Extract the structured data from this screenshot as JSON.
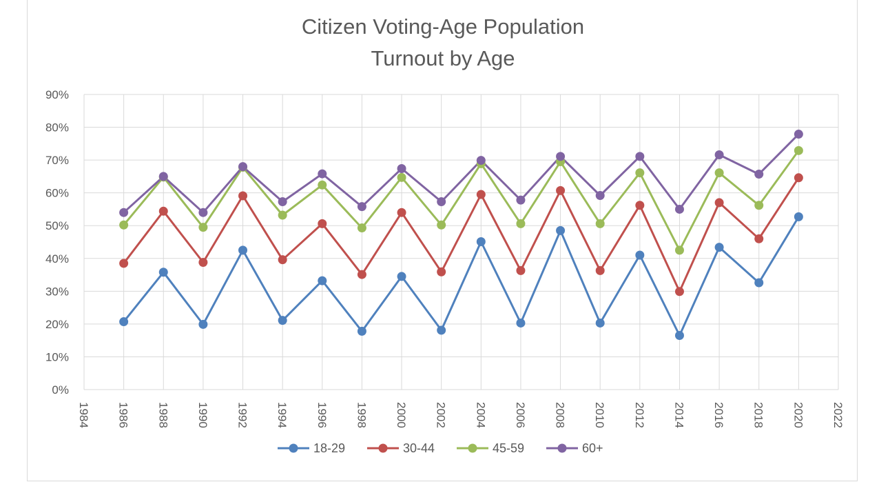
{
  "chart_data": {
    "type": "line",
    "title_lines": [
      "Citizen Voting-Age Population",
      "Turnout by Age"
    ],
    "xlabel": "",
    "ylabel": "",
    "x": [
      1986,
      1988,
      1990,
      1992,
      1994,
      1996,
      1998,
      2000,
      2002,
      2004,
      2006,
      2008,
      2010,
      2012,
      2014,
      2016,
      2018,
      2020
    ],
    "xlim": [
      1984,
      2022
    ],
    "x_ticks": [
      "1984",
      "1986",
      "1988",
      "1990",
      "1992",
      "1994",
      "1996",
      "1998",
      "2000",
      "2002",
      "2004",
      "2006",
      "2008",
      "2010",
      "2012",
      "2014",
      "2016",
      "2018",
      "2020",
      "2022"
    ],
    "ylim": [
      0,
      0.9
    ],
    "y_ticks": [
      "0%",
      "10%",
      "20%",
      "30%",
      "40%",
      "50%",
      "60%",
      "70%",
      "80%",
      "90%"
    ],
    "grid": true,
    "legend_position": "bottom",
    "series": [
      {
        "name": "18-29",
        "color": "#4f81bd",
        "values": [
          0.207,
          0.358,
          0.199,
          0.425,
          0.211,
          0.332,
          0.178,
          0.345,
          0.181,
          0.451,
          0.203,
          0.485,
          0.203,
          0.41,
          0.165,
          0.434,
          0.326,
          0.527
        ]
      },
      {
        "name": "30-44",
        "color": "#c0504d",
        "values": [
          0.385,
          0.544,
          0.388,
          0.591,
          0.396,
          0.506,
          0.351,
          0.54,
          0.359,
          0.595,
          0.363,
          0.607,
          0.363,
          0.562,
          0.299,
          0.57,
          0.46,
          0.646
        ]
      },
      {
        "name": "45-59",
        "color": "#9bbb59",
        "values": [
          0.502,
          0.648,
          0.495,
          0.678,
          0.532,
          0.624,
          0.493,
          0.647,
          0.502,
          0.689,
          0.506,
          0.695,
          0.506,
          0.661,
          0.425,
          0.661,
          0.562,
          0.729
        ]
      },
      {
        "name": "60+",
        "color": "#8064a2",
        "values": [
          0.54,
          0.65,
          0.54,
          0.68,
          0.573,
          0.658,
          0.558,
          0.674,
          0.573,
          0.699,
          0.578,
          0.711,
          0.592,
          0.711,
          0.55,
          0.716,
          0.657,
          0.779
        ]
      }
    ]
  }
}
